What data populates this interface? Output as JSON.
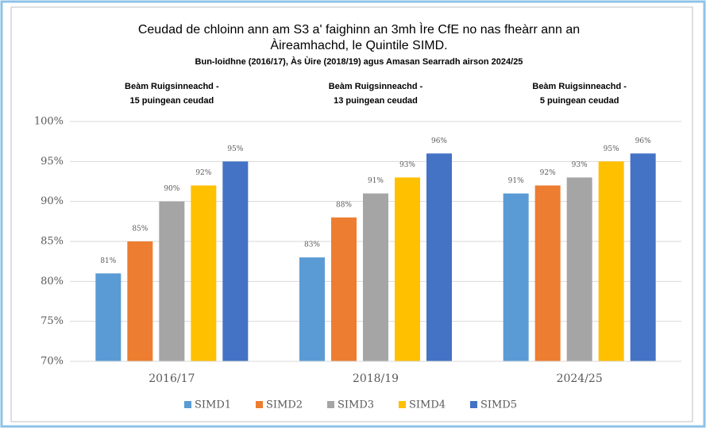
{
  "chart_data": {
    "type": "bar",
    "title": [
      "Ceudad de chloinn ann am S3 a' faighinn an 3mh Ìre CfE no nas fheàrr ann an",
      "Àireamhachd, le Quintile SIMD."
    ],
    "subtitle": "Bun-loidhne (2016/17), Às Ùire (2018/19) agus Amasan Searradh airson 2024/25",
    "annotations": [
      [
        "Beàm Ruigsinneachd -",
        "15 puingean ceudad"
      ],
      [
        "Beàm Ruigsinneachd -",
        "13 puingean ceudad"
      ],
      [
        "Beàm Ruigsinneachd -",
        "5 puingean ceudad"
      ]
    ],
    "categories": [
      "2016/17",
      "2018/19",
      "2024/25"
    ],
    "series": [
      {
        "name": "SIMD1",
        "color": "#5b9bd5",
        "values": [
          81,
          83,
          91
        ],
        "value_labels": [
          "81%",
          "83%",
          "91%"
        ]
      },
      {
        "name": "SIMD2",
        "color": "#ed7d31",
        "values": [
          85,
          88,
          92
        ],
        "value_labels": [
          "85%",
          "88%",
          "92%"
        ]
      },
      {
        "name": "SIMD3",
        "color": "#a5a5a5",
        "values": [
          90,
          91,
          93
        ],
        "value_labels": [
          "90%",
          "91%",
          "93%"
        ]
      },
      {
        "name": "SIMD4",
        "color": "#ffc000",
        "values": [
          92,
          93,
          95
        ],
        "value_labels": [
          "92%",
          "93%",
          "95%"
        ]
      },
      {
        "name": "SIMD5",
        "color": "#4472c4",
        "values": [
          95,
          96,
          96
        ],
        "value_labels": [
          "95%",
          "96%",
          "96%"
        ]
      }
    ],
    "ylim": [
      70,
      100
    ],
    "yticks": [
      {
        "value": 70,
        "label": "70%"
      },
      {
        "value": 75,
        "label": "75%"
      },
      {
        "value": 80,
        "label": "80%"
      },
      {
        "value": 85,
        "label": "85%"
      },
      {
        "value": 90,
        "label": "90%"
      },
      {
        "value": 95,
        "label": "95%"
      },
      {
        "value": 100,
        "label": "100%"
      }
    ],
    "grid": true,
    "legend": "bottom"
  }
}
